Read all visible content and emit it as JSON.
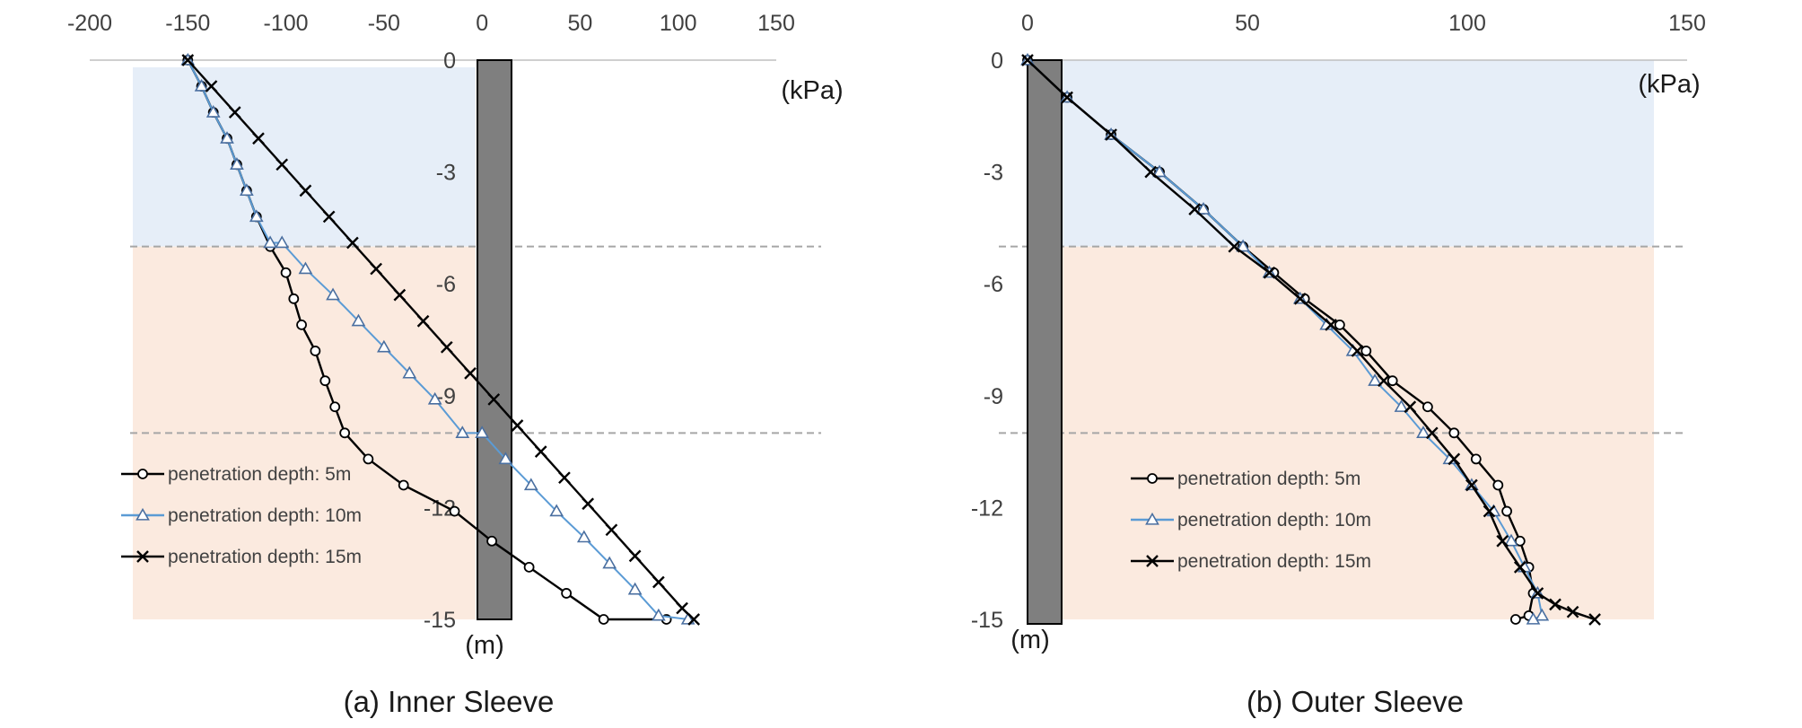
{
  "chart_data": [
    {
      "type": "line",
      "title": "(a) Inner Sleeve",
      "xunit": "(kPa)",
      "yunit": "(m)",
      "xlim": [
        -200,
        150
      ],
      "ylim": [
        -15,
        0
      ],
      "xticks": [
        "-200",
        "-150",
        "-100",
        "-50",
        "0",
        "50",
        "100",
        "150"
      ],
      "xtick_values": [
        -200,
        -150,
        -100,
        -50,
        0,
        50,
        100,
        150
      ],
      "yticks": [
        "0",
        "-3",
        "-6",
        "-9",
        "-12",
        "-15"
      ],
      "ytick_values": [
        0,
        -3,
        -6,
        -9,
        -12,
        -15
      ],
      "pile_x": [
        -2,
        15
      ],
      "soil_layers": [
        {
          "top": 0,
          "bottom": -5,
          "color": "#e6eef8"
        },
        {
          "top": -5,
          "bottom": -15,
          "color": "#fbeadf"
        }
      ],
      "boundaries": [
        -5,
        -10
      ],
      "legend_position": "bottom-left",
      "series": [
        {
          "name": "penetration depth: 5m",
          "marker": "circle",
          "color": "#000000",
          "x": [
            -150,
            -143,
            -137,
            -130,
            -125,
            -120,
            -115,
            -108,
            -100,
            -96,
            -92,
            -85,
            -80,
            -75,
            -70,
            -58,
            -40,
            -14,
            5,
            24,
            43,
            62,
            94
          ],
          "y": [
            0,
            -0.7,
            -1.4,
            -2.1,
            -2.8,
            -3.5,
            -4.2,
            -5.0,
            -5.7,
            -6.4,
            -7.1,
            -7.8,
            -8.6,
            -9.3,
            -10.0,
            -10.7,
            -11.4,
            -12.1,
            -12.9,
            -13.6,
            -14.3,
            -15.0,
            -15.0
          ]
        },
        {
          "name": "penetration depth: 10m",
          "marker": "triangle",
          "color": "#5b9bd5",
          "x": [
            -150,
            -143,
            -137,
            -130,
            -125,
            -120,
            -115,
            -108,
            -102,
            -90,
            -76,
            -63,
            -50,
            -37,
            -24,
            -10,
            0,
            12,
            25,
            38,
            52,
            65,
            78,
            90,
            105
          ],
          "y": [
            0,
            -0.7,
            -1.4,
            -2.1,
            -2.8,
            -3.5,
            -4.2,
            -5.0,
            -5.0,
            -5.7,
            -6.4,
            -7.1,
            -7.8,
            -8.6,
            -9.3,
            -10.0,
            -10.0,
            -10.7,
            -11.4,
            -12.1,
            -12.9,
            -13.6,
            -14.3,
            -15.0,
            -15.0
          ],
          "y_override": [
            0,
            -0.7,
            -1.4,
            -2.1,
            -2.8,
            -3.5,
            -4.2,
            -4.9,
            -4.9,
            -5.6,
            -6.3,
            -7.0,
            -7.7,
            -8.4,
            -9.1,
            -10.0,
            -10.0,
            -10.7,
            -11.4,
            -12.1,
            -12.8,
            -13.5,
            -14.2,
            -14.9,
            -15.0
          ]
        },
        {
          "name": "penetration depth: 15m",
          "marker": "x",
          "color": "#000000",
          "x": [
            -150,
            -138,
            -126,
            -114,
            -102,
            -90,
            -78,
            -66,
            -54,
            -42,
            -30,
            -18,
            -6,
            6,
            18,
            30,
            42,
            54,
            66,
            78,
            90,
            102,
            108
          ],
          "y": [
            0,
            -0.7,
            -1.4,
            -2.1,
            -2.8,
            -3.5,
            -4.2,
            -4.9,
            -5.6,
            -6.3,
            -7.0,
            -7.7,
            -8.4,
            -9.1,
            -9.8,
            -10.5,
            -11.2,
            -11.9,
            -12.6,
            -13.3,
            -14.0,
            -14.7,
            -15.0
          ]
        }
      ]
    },
    {
      "type": "line",
      "title": "(b) Outer Sleeve",
      "xunit": "(kPa)",
      "yunit": "(m)",
      "xlim": [
        0,
        150
      ],
      "ylim": [
        -15,
        0
      ],
      "xticks": [
        "0",
        "50",
        "100",
        "150"
      ],
      "xtick_values": [
        0,
        50,
        100,
        150
      ],
      "yticks": [
        "0",
        "-3",
        "-6",
        "-9",
        "-12",
        "-15"
      ],
      "ytick_values": [
        0,
        -3,
        -6,
        -9,
        -12,
        -15
      ],
      "pile_x": [
        0,
        8
      ],
      "soil_layers": [
        {
          "top": 0,
          "bottom": -5,
          "color": "#e6eef8"
        },
        {
          "top": -5,
          "bottom": -15,
          "color": "#fbeadf"
        }
      ],
      "boundaries": [
        -5,
        -10
      ],
      "legend_position": "bottom-left",
      "series": [
        {
          "name": "penetration depth: 5m",
          "marker": "circle",
          "color": "#000000",
          "x": [
            0,
            9,
            19,
            30,
            40,
            49,
            56,
            63,
            71,
            77,
            83,
            91,
            97,
            102,
            107,
            109,
            112,
            114,
            115,
            114,
            111
          ],
          "y": [
            0,
            -1,
            -2,
            -3,
            -4,
            -5,
            -5.7,
            -6.4,
            -7.1,
            -7.8,
            -8.6,
            -9.3,
            -10,
            -10.7,
            -11.4,
            -12.1,
            -12.9,
            -13.6,
            -14.3,
            -14.9,
            -15.0
          ]
        },
        {
          "name": "penetration depth: 10m",
          "marker": "triangle",
          "color": "#5b9bd5",
          "x": [
            0,
            9,
            19,
            30,
            40,
            49,
            55,
            62,
            68,
            74,
            79,
            85,
            90,
            96,
            101,
            106,
            110,
            113,
            116,
            117,
            115
          ],
          "y": [
            0,
            -1,
            -2,
            -3,
            -4,
            -5,
            -5.7,
            -6.4,
            -7.1,
            -7.8,
            -8.6,
            -9.3,
            -10,
            -10.7,
            -11.4,
            -12.1,
            -12.9,
            -13.6,
            -14.3,
            -14.9,
            -15.0
          ]
        },
        {
          "name": "penetration depth: 15m",
          "marker": "x",
          "color": "#000000",
          "x": [
            0,
            9,
            19,
            28,
            38,
            47,
            55,
            62,
            69,
            75,
            81,
            87,
            92,
            97,
            101,
            105,
            108,
            112,
            116,
            120,
            124,
            129
          ],
          "y": [
            0,
            -1,
            -2,
            -3,
            -4,
            -5,
            -5.7,
            -6.4,
            -7.1,
            -7.8,
            -8.6,
            -9.3,
            -10,
            -10.7,
            -11.4,
            -12.1,
            -12.9,
            -13.6,
            -14.3,
            -14.6,
            -14.8,
            -15.0
          ]
        }
      ]
    }
  ]
}
